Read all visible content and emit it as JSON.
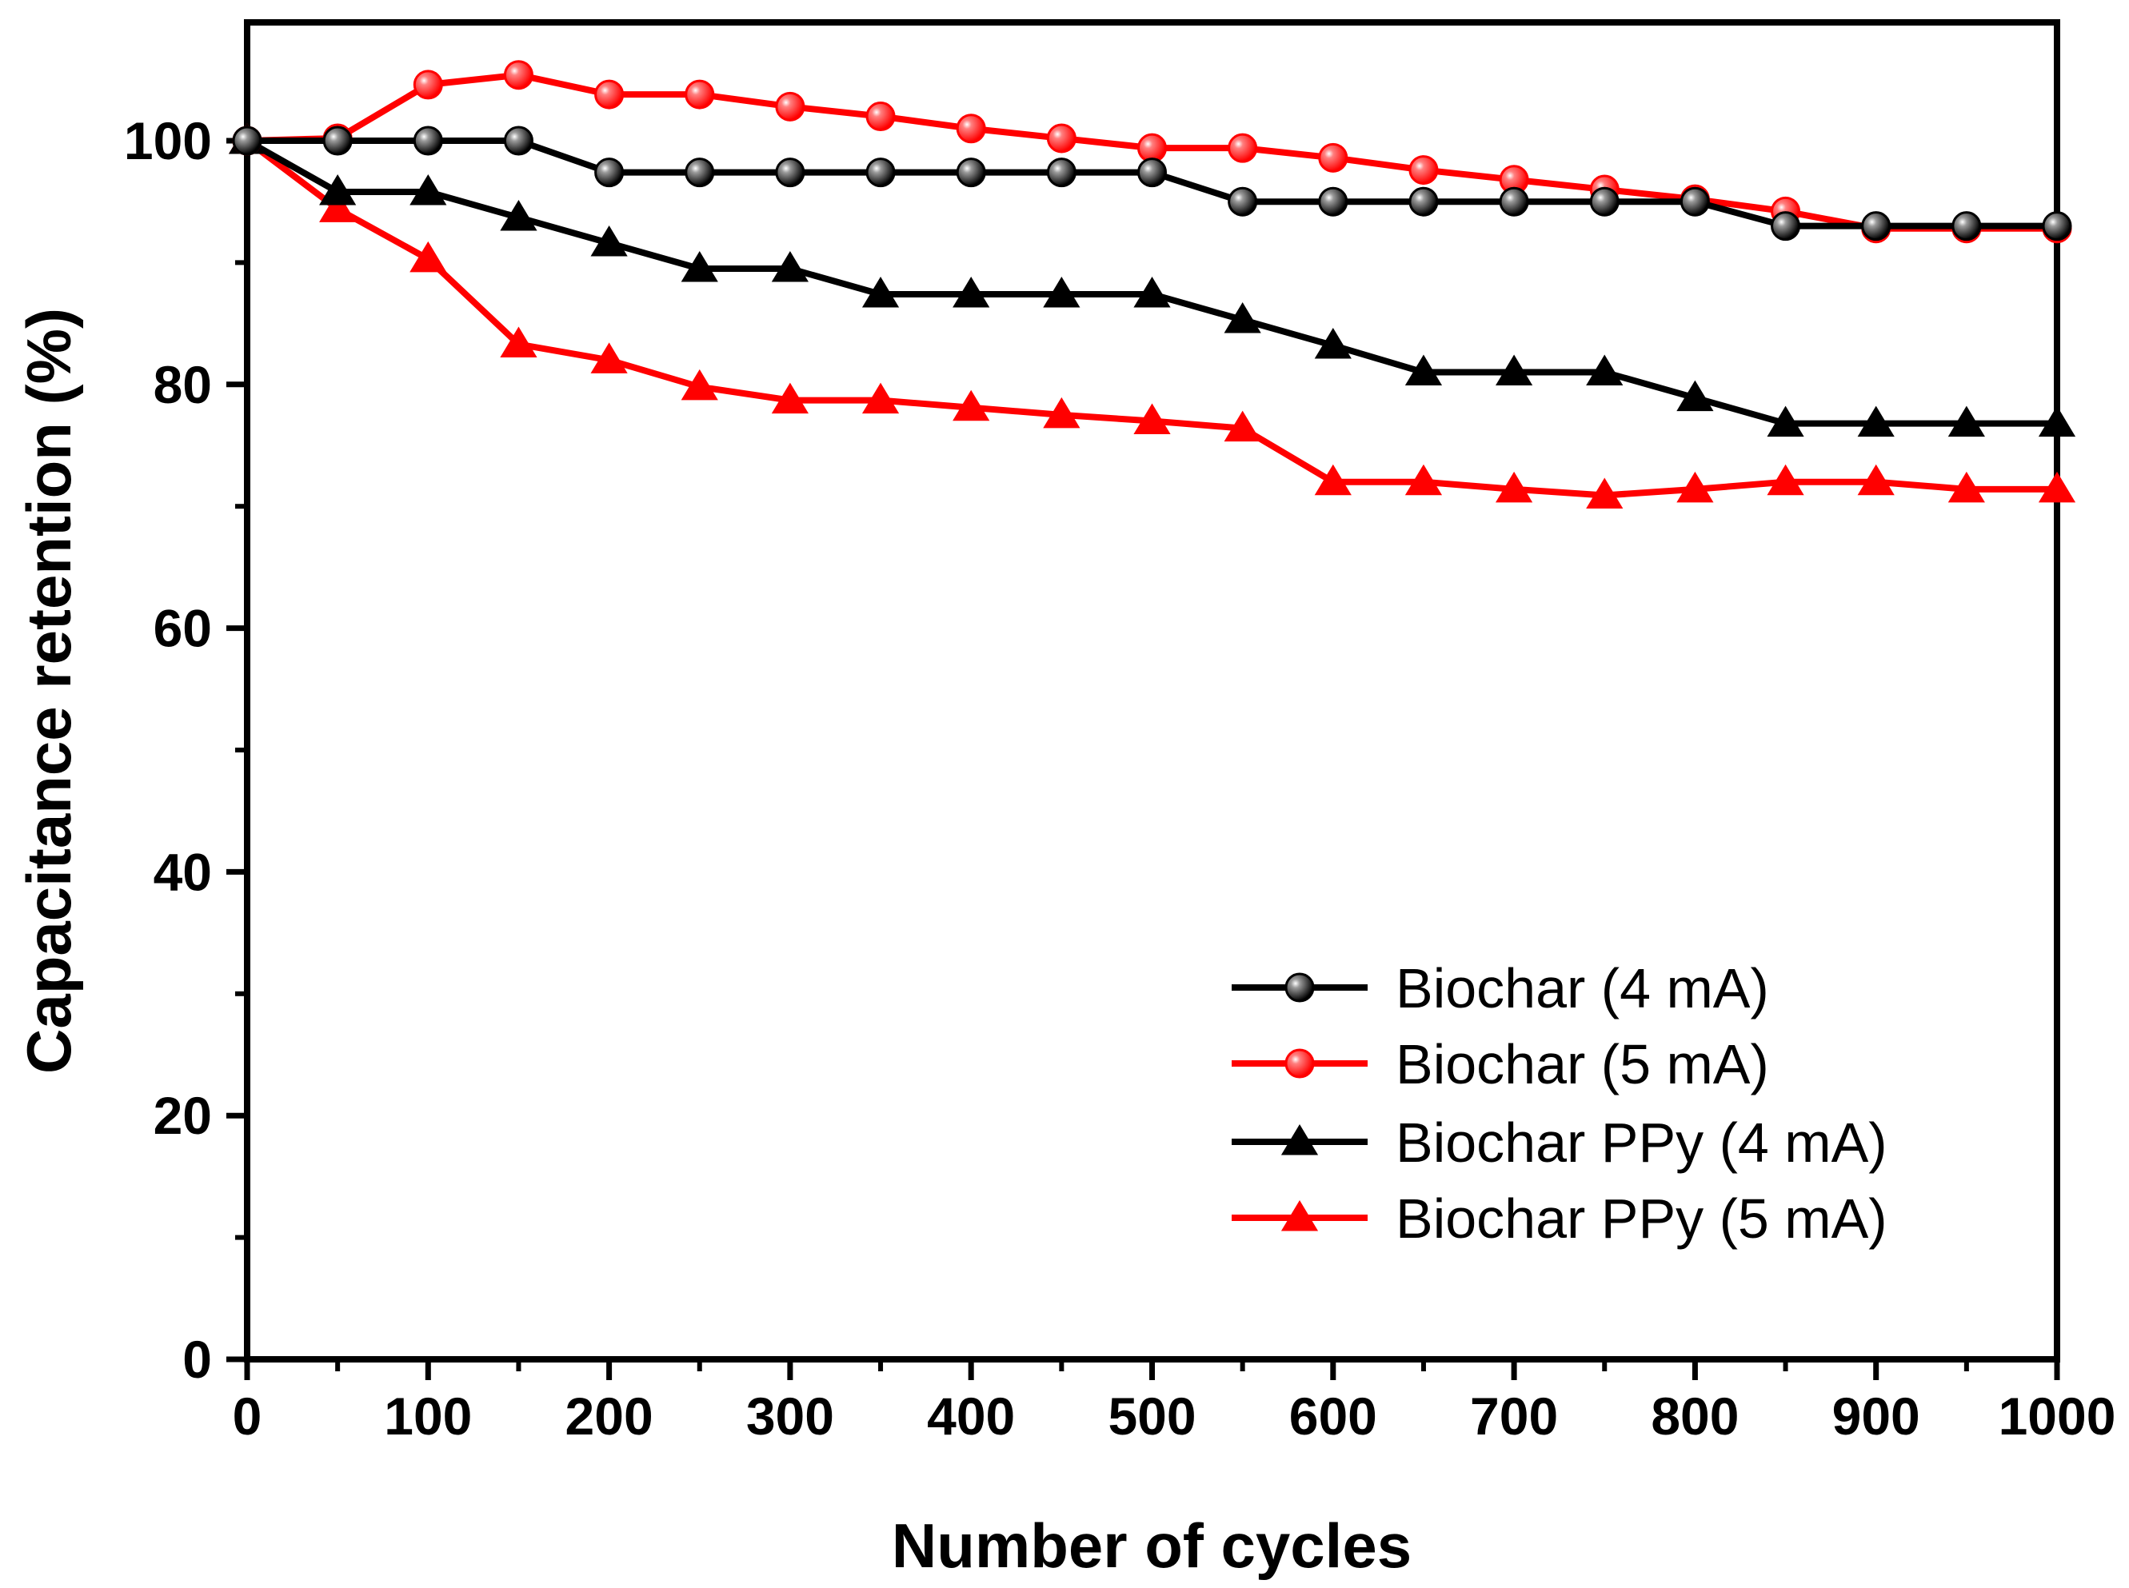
{
  "chart_data": {
    "type": "line",
    "title": "",
    "xlabel": "Number of cycles",
    "ylabel": "Capacitance retention (%)",
    "xlim": [
      0,
      1000
    ],
    "ylim": [
      0,
      110
    ],
    "x_ticks": [
      0,
      100,
      200,
      300,
      400,
      500,
      600,
      700,
      800,
      900,
      1000
    ],
    "x_tick_labels": [
      "0",
      "100",
      "200",
      "300",
      "400",
      "500",
      "600",
      "700",
      "800",
      "900",
      "1000"
    ],
    "y_ticks": [
      0,
      20,
      40,
      60,
      80,
      100
    ],
    "y_tick_labels": [
      "0",
      "20",
      "40",
      "60",
      "80",
      "100"
    ],
    "grid": false,
    "legend_position": "bottom-right",
    "x": [
      0,
      50,
      100,
      150,
      200,
      250,
      300,
      350,
      400,
      450,
      500,
      550,
      600,
      650,
      700,
      750,
      800,
      850,
      900,
      950,
      1000
    ],
    "series": [
      {
        "name": "Biochar (4 mA)",
        "color": "#000000",
        "marker": "circle",
        "values": [
          100,
          100,
          100,
          100,
          97.4,
          97.4,
          97.4,
          97.4,
          97.4,
          97.4,
          97.4,
          95,
          95,
          95,
          95,
          95,
          95,
          93,
          93,
          93,
          93
        ]
      },
      {
        "name": "Biochar (5 mA)",
        "color": "#ff0000",
        "marker": "circle",
        "values": [
          100,
          100.2,
          104.6,
          105.4,
          103.8,
          103.8,
          102.8,
          102,
          101,
          100.2,
          99.4,
          99.4,
          98.6,
          97.6,
          96.8,
          96,
          95.2,
          94.2,
          92.8,
          92.8,
          92.8
        ]
      },
      {
        "name": "Biochar PPy (4 mA)",
        "color": "#000000",
        "marker": "triangle",
        "values": [
          100,
          95.8,
          95.8,
          93.7,
          91.6,
          89.5,
          89.5,
          87.4,
          87.4,
          87.4,
          87.4,
          85.3,
          83.2,
          81,
          81,
          81,
          78.9,
          76.8,
          76.8,
          76.8,
          76.8
        ]
      },
      {
        "name": "Biochar PPy (5 mA)",
        "color": "#ff0000",
        "marker": "triangle",
        "values": [
          100,
          94.4,
          90.3,
          83.3,
          82,
          79.8,
          78.7,
          78.7,
          78.1,
          77.5,
          77,
          76.4,
          72,
          72,
          71.4,
          70.9,
          71.4,
          72,
          72,
          71.4,
          71.4
        ]
      }
    ]
  }
}
